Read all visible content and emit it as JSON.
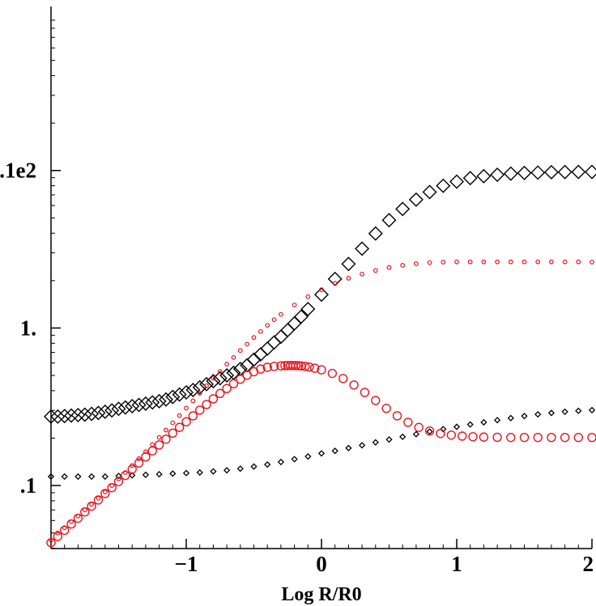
{
  "chart_data": {
    "type": "scatter",
    "title": "",
    "xlabel": "Log R/R0",
    "ylabel": "",
    "xlim": [
      -2,
      2
    ],
    "ylim": [
      0.0398,
      110
    ],
    "yscale": "log",
    "grid": false,
    "legend": "none",
    "x_ticks": [
      {
        "value": -1,
        "label": "−1"
      },
      {
        "value": 0,
        "label": "0"
      },
      {
        "value": 1,
        "label": "1"
      },
      {
        "value": 2,
        "label": "2"
      }
    ],
    "y_ticks": [
      {
        "value": 0.1,
        "label": ".1"
      },
      {
        "value": 1,
        "label": "1."
      },
      {
        "value": 10,
        "label": ".1e2"
      }
    ],
    "colors": {
      "black": "#000000",
      "red": "#e8141e"
    },
    "series": [
      {
        "marker": "diamond-large",
        "color": "#000000",
        "x": [
          -2.0,
          -1.95,
          -1.9,
          -1.85,
          -1.8,
          -1.75,
          -1.7,
          -1.65,
          -1.6,
          -1.55,
          -1.5,
          -1.45,
          -1.4,
          -1.35,
          -1.3,
          -1.25,
          -1.2,
          -1.15,
          -1.1,
          -1.05,
          -1.0,
          -0.95,
          -0.9,
          -0.85,
          -0.8,
          -0.75,
          -0.7,
          -0.65,
          -0.6,
          -0.55,
          -0.5,
          -0.45,
          -0.4,
          -0.35,
          -0.3,
          -0.25,
          -0.2,
          -0.15,
          -0.1,
          0.0,
          0.1,
          0.2,
          0.3,
          0.4,
          0.5,
          0.6,
          0.7,
          0.8,
          0.9,
          1.0,
          1.1,
          1.2,
          1.3,
          1.4,
          1.5,
          1.6,
          1.7,
          1.8,
          1.9,
          2.0
        ],
        "y": [
          0.274,
          0.274,
          0.276,
          0.278,
          0.28,
          0.282,
          0.285,
          0.289,
          0.294,
          0.3,
          0.307,
          0.313,
          0.319,
          0.325,
          0.331,
          0.337,
          0.343,
          0.352,
          0.365,
          0.378,
          0.39,
          0.404,
          0.42,
          0.44,
          0.46,
          0.48,
          0.5,
          0.52,
          0.55,
          0.58,
          0.63,
          0.68,
          0.74,
          0.81,
          0.88,
          0.97,
          1.07,
          1.18,
          1.32,
          1.63,
          2.05,
          2.55,
          3.19,
          3.98,
          4.84,
          5.7,
          6.53,
          7.3,
          8.0,
          8.5,
          8.95,
          9.2,
          9.4,
          9.55,
          9.65,
          9.7,
          9.75,
          9.78,
          9.8,
          9.8
        ]
      },
      {
        "marker": "diamond-small",
        "color": "#000000",
        "x": [
          -2.0,
          -1.9,
          -1.8,
          -1.7,
          -1.6,
          -1.5,
          -1.4,
          -1.3,
          -1.2,
          -1.1,
          -1.0,
          -0.9,
          -0.8,
          -0.7,
          -0.6,
          -0.5,
          -0.4,
          -0.3,
          -0.2,
          -0.1,
          0.0,
          0.1,
          0.2,
          0.3,
          0.4,
          0.5,
          0.6,
          0.7,
          0.8,
          0.9,
          1.0,
          1.1,
          1.2,
          1.3,
          1.4,
          1.5,
          1.6,
          1.7,
          1.8,
          1.9,
          2.0
        ],
        "y": [
          0.114,
          0.114,
          0.114,
          0.114,
          0.114,
          0.115,
          0.116,
          0.117,
          0.118,
          0.119,
          0.12,
          0.121,
          0.123,
          0.125,
          0.128,
          0.132,
          0.136,
          0.141,
          0.147,
          0.153,
          0.16,
          0.166,
          0.173,
          0.18,
          0.188,
          0.196,
          0.204,
          0.212,
          0.22,
          0.228,
          0.236,
          0.244,
          0.252,
          0.26,
          0.268,
          0.276,
          0.283,
          0.289,
          0.294,
          0.298,
          0.301
        ]
      },
      {
        "marker": "circle-small",
        "color": "#e8141e",
        "x": [
          -2.0,
          -1.95,
          -1.9,
          -1.85,
          -1.8,
          -1.75,
          -1.7,
          -1.65,
          -1.6,
          -1.55,
          -1.5,
          -1.45,
          -1.4,
          -1.35,
          -1.3,
          -1.25,
          -1.2,
          -1.15,
          -1.1,
          -1.05,
          -1.0,
          -0.95,
          -0.9,
          -0.85,
          -0.8,
          -0.75,
          -0.7,
          -0.65,
          -0.6,
          -0.55,
          -0.5,
          -0.45,
          -0.4,
          -0.35,
          -0.3,
          -0.2,
          -0.1,
          0.0,
          0.1,
          0.2,
          0.3,
          0.4,
          0.5,
          0.6,
          0.7,
          0.8,
          0.9,
          1.0,
          1.1,
          1.2,
          1.3,
          1.4,
          1.5,
          1.6,
          1.7,
          1.8,
          1.9,
          2.0
        ],
        "y": [
          0.045,
          0.05,
          0.054,
          0.059,
          0.064,
          0.07,
          0.076,
          0.083,
          0.091,
          0.1,
          0.11,
          0.121,
          0.134,
          0.148,
          0.164,
          0.182,
          0.202,
          0.225,
          0.25,
          0.278,
          0.31,
          0.345,
          0.385,
          0.43,
          0.48,
          0.53,
          0.59,
          0.65,
          0.72,
          0.79,
          0.87,
          0.95,
          1.04,
          1.13,
          1.22,
          1.4,
          1.58,
          1.75,
          1.92,
          2.07,
          2.2,
          2.32,
          2.42,
          2.5,
          2.56,
          2.6,
          2.62,
          2.63,
          2.63,
          2.63,
          2.63,
          2.63,
          2.63,
          2.63,
          2.63,
          2.63,
          2.63,
          2.62
        ]
      },
      {
        "marker": "circle-large",
        "color": "#e8141e",
        "x": [
          -2.0,
          -1.95,
          -1.9,
          -1.85,
          -1.8,
          -1.75,
          -1.7,
          -1.65,
          -1.6,
          -1.55,
          -1.5,
          -1.45,
          -1.4,
          -1.35,
          -1.3,
          -1.25,
          -1.2,
          -1.15,
          -1.1,
          -1.05,
          -1.0,
          -0.95,
          -0.9,
          -0.85,
          -0.8,
          -0.75,
          -0.7,
          -0.65,
          -0.6,
          -0.55,
          -0.5,
          -0.45,
          -0.4,
          -0.35,
          -0.3,
          -0.27,
          -0.25,
          -0.23,
          -0.21,
          -0.19,
          -0.17,
          -0.15,
          -0.12,
          -0.09,
          -0.05,
          0.0,
          0.08,
          0.16,
          0.24,
          0.32,
          0.4,
          0.48,
          0.56,
          0.64,
          0.72,
          0.8,
          0.88,
          0.96,
          1.04,
          1.12,
          1.2,
          1.3,
          1.4,
          1.5,
          1.6,
          1.7,
          1.8,
          1.9,
          2.0
        ],
        "y": [
          0.0434,
          0.0475,
          0.052,
          0.057,
          0.062,
          0.068,
          0.074,
          0.081,
          0.089,
          0.097,
          0.106,
          0.116,
          0.127,
          0.139,
          0.152,
          0.166,
          0.181,
          0.197,
          0.215,
          0.234,
          0.254,
          0.277,
          0.301,
          0.327,
          0.355,
          0.384,
          0.413,
          0.443,
          0.473,
          0.502,
          0.528,
          0.549,
          0.563,
          0.571,
          0.575,
          0.577,
          0.578,
          0.578,
          0.578,
          0.578,
          0.577,
          0.575,
          0.571,
          0.565,
          0.556,
          0.543,
          0.515,
          0.478,
          0.435,
          0.39,
          0.347,
          0.309,
          0.277,
          0.252,
          0.234,
          0.222,
          0.214,
          0.209,
          0.206,
          0.204,
          0.203,
          0.2025,
          0.202,
          0.202,
          0.202,
          0.202,
          0.202,
          0.202,
          0.202
        ]
      }
    ]
  }
}
